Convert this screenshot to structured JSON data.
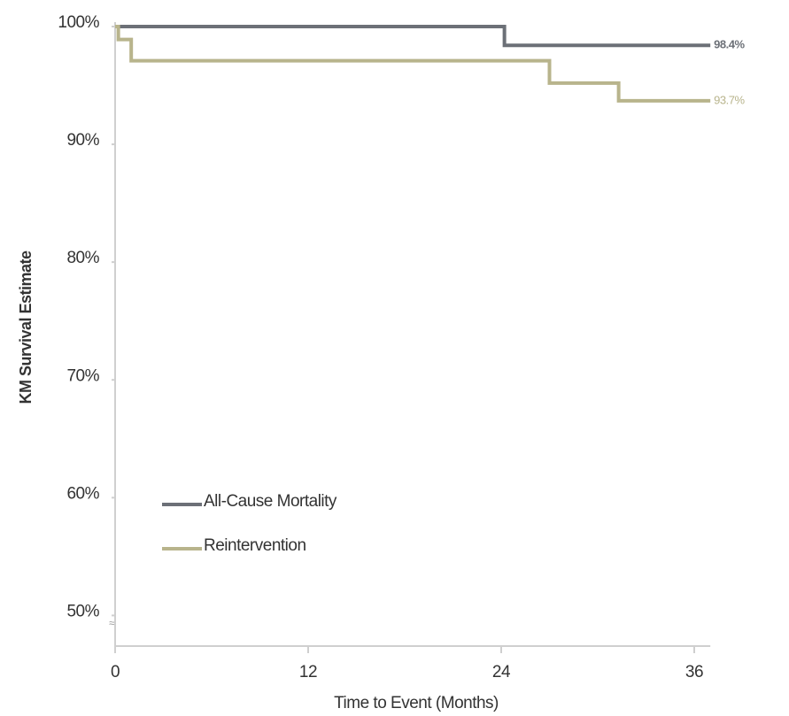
{
  "chart_data": {
    "type": "line",
    "step": true,
    "y_label": "KM Survival Estimate",
    "x_label": "Time to Event (Months)",
    "xlim": [
      0,
      37
    ],
    "xticks": [
      0,
      12,
      24,
      36
    ],
    "ylim": [
      47.4,
      100
    ],
    "yticks": [
      {
        "value": 50,
        "label": "50%"
      },
      {
        "value": 60,
        "label": "60%"
      },
      {
        "value": 70,
        "label": "70%"
      },
      {
        "value": 80,
        "label": "80%"
      },
      {
        "value": 90,
        "label": "90%"
      },
      {
        "value": 100,
        "label": "100%"
      }
    ],
    "grid": false,
    "legend": "lower left",
    "series": [
      {
        "name": "All-Cause Mortality",
        "color": "#6c7077",
        "x": [
          0,
          24.2,
          37
        ],
        "values": [
          100,
          98.4,
          98.4
        ],
        "value_labels": [
          null,
          null,
          "98.4%"
        ]
      },
      {
        "name": "Reintervention",
        "color": "#b8b48c",
        "x": [
          0,
          0.2,
          1.0,
          27.0,
          31.3,
          37
        ],
        "values": [
          100,
          98.9,
          97.1,
          95.2,
          93.7,
          93.7
        ],
        "value_labels": [
          null,
          null,
          null,
          null,
          null,
          "93.7%"
        ]
      }
    ]
  }
}
